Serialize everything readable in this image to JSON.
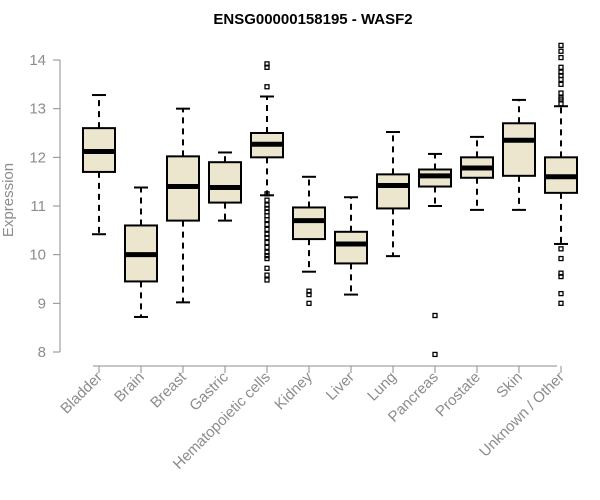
{
  "chart_data": {
    "type": "box",
    "title": "ENSG00000158195 - WASF2",
    "ylabel": "Expression",
    "xlabel": "",
    "ylim": [
      7.8,
      14.3
    ],
    "yticks": [
      8,
      9,
      10,
      11,
      12,
      13,
      14
    ],
    "ytick_labels": [
      "8",
      "9",
      "10",
      "11",
      "12",
      "13",
      "14"
    ],
    "grid": false,
    "legend": "none",
    "colors": {
      "box_fill": "#ece6cf",
      "stroke": "#000000",
      "axis": "#8c8c8c"
    },
    "categories": [
      "Bladder",
      "Brain",
      "Breast",
      "Gastric",
      "Hematopoietic cells",
      "Kidney",
      "Liver",
      "Lung",
      "Pancreas",
      "Prostate",
      "Skin",
      "Unknown / Other"
    ],
    "boxes": [
      {
        "category": "Bladder",
        "whisker_low": 10.42,
        "q1": 11.7,
        "median": 12.12,
        "q3": 12.6,
        "whisker_high": 13.28,
        "outliers": []
      },
      {
        "category": "Brain",
        "whisker_low": 8.72,
        "q1": 9.45,
        "median": 10.0,
        "q3": 10.6,
        "whisker_high": 11.38,
        "outliers": []
      },
      {
        "category": "Breast",
        "whisker_low": 9.02,
        "q1": 10.7,
        "median": 11.4,
        "q3": 12.02,
        "whisker_high": 13.0,
        "outliers": []
      },
      {
        "category": "Gastric",
        "whisker_low": 10.7,
        "q1": 11.07,
        "median": 11.38,
        "q3": 11.9,
        "whisker_high": 12.1,
        "outliers": []
      },
      {
        "category": "Hematopoietic cells",
        "whisker_low": 11.22,
        "q1": 12.0,
        "median": 12.27,
        "q3": 12.5,
        "whisker_high": 13.25,
        "outliers": [
          13.92,
          13.85,
          13.45,
          11.25,
          11.12,
          11.02,
          10.95,
          10.88,
          10.8,
          10.72,
          10.62,
          10.52,
          10.42,
          10.35,
          10.25,
          10.15,
          10.05,
          9.98,
          9.92,
          9.72,
          9.58,
          9.48
        ]
      },
      {
        "category": "Kidney",
        "whisker_low": 9.65,
        "q1": 10.32,
        "median": 10.7,
        "q3": 10.97,
        "whisker_high": 11.6,
        "outliers": [
          9.25,
          9.18,
          9.0
        ]
      },
      {
        "category": "Liver",
        "whisker_low": 9.18,
        "q1": 9.82,
        "median": 10.22,
        "q3": 10.47,
        "whisker_high": 11.18,
        "outliers": []
      },
      {
        "category": "Lung",
        "whisker_low": 9.97,
        "q1": 10.95,
        "median": 11.42,
        "q3": 11.65,
        "whisker_high": 12.52,
        "outliers": []
      },
      {
        "category": "Pancreas",
        "whisker_low": 11.0,
        "q1": 11.4,
        "median": 11.62,
        "q3": 11.75,
        "whisker_high": 12.07,
        "outliers": [
          8.75,
          7.95
        ]
      },
      {
        "category": "Prostate",
        "whisker_low": 10.92,
        "q1": 11.58,
        "median": 11.78,
        "q3": 12.0,
        "whisker_high": 12.42,
        "outliers": []
      },
      {
        "category": "Skin",
        "whisker_low": 10.92,
        "q1": 11.62,
        "median": 12.35,
        "q3": 12.7,
        "whisker_high": 13.18,
        "outliers": []
      },
      {
        "category": "Unknown / Other",
        "whisker_low": 10.22,
        "q1": 11.27,
        "median": 11.6,
        "q3": 12.0,
        "whisker_high": 13.05,
        "outliers": [
          14.3,
          14.18,
          14.05,
          13.85,
          13.75,
          13.68,
          13.6,
          13.5,
          13.32,
          13.22,
          13.18,
          13.1,
          10.12,
          9.92,
          9.62,
          9.55,
          9.2,
          9.0
        ]
      }
    ]
  }
}
